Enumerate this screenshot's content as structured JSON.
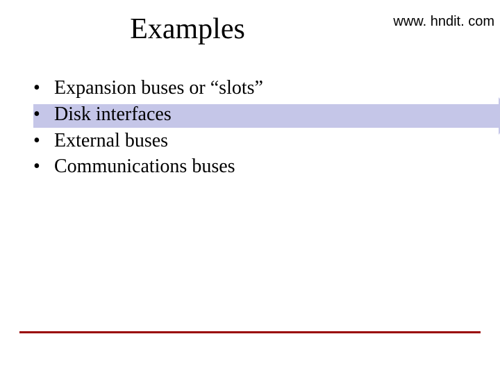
{
  "header": {
    "url": "www. hndit. com"
  },
  "slide": {
    "title": "Examples",
    "bullets": [
      "Expansion buses or “slots”",
      "Disk interfaces",
      "External buses",
      "Communications buses"
    ]
  },
  "style": {
    "highlight_color": "#c5c6e8",
    "rule_color": "#990000",
    "title_fontsize": 42,
    "body_fontsize": 28,
    "url_fontsize": 20
  }
}
